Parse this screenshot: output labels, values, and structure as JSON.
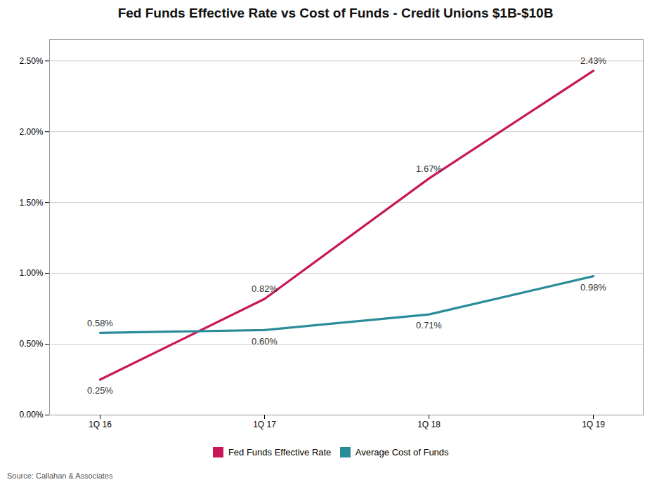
{
  "chart_data": {
    "type": "line",
    "title": "Fed Funds Effective Rate vs Cost of Funds - Credit Unions $1B-$10B",
    "categories": [
      "1Q 16",
      "1Q 17",
      "1Q 18",
      "1Q 19"
    ],
    "series": [
      {
        "name": "Fed Funds Effective Rate",
        "color": "#C8185A",
        "values": [
          0.0025,
          0.0082,
          0.0167,
          0.0243
        ],
        "value_labels": [
          "0.25%",
          "0.82%",
          "1.67%",
          "2.43%"
        ]
      },
      {
        "name": "Average Cost of Funds",
        "color": "#2B8C99",
        "values": [
          0.0058,
          0.006,
          0.0071,
          0.0098
        ],
        "value_labels": [
          "0.58%",
          "0.60%",
          "0.71%",
          "0.98%"
        ]
      }
    ],
    "ylim": [
      0.0,
      0.0265
    ],
    "yticks": [
      {
        "value": 0.0,
        "label": "0.00%"
      },
      {
        "value": 0.005,
        "label": "0.50%"
      },
      {
        "value": 0.01,
        "label": "1.00%"
      },
      {
        "value": 0.015,
        "label": "1.50%"
      },
      {
        "value": 0.02,
        "label": "2.00%"
      },
      {
        "value": 0.025,
        "label": "2.50%"
      }
    ],
    "grid": true,
    "legend": "bottom",
    "data_labels": true,
    "caption": "Source: Callahan & Associates"
  }
}
